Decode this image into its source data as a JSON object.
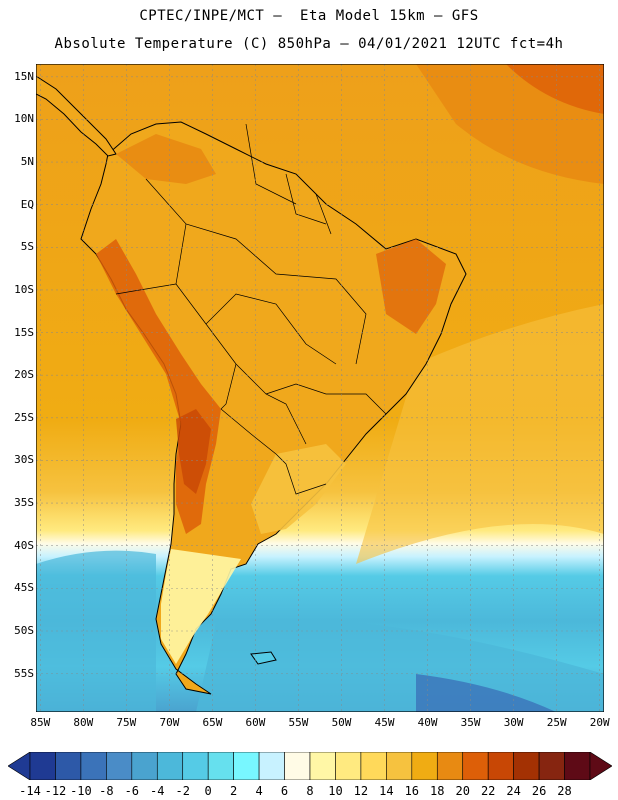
{
  "header": {
    "line1": "CPTEC/INPE/MCT –  Eta Model 15km – GFS",
    "line2": "Absolute Temperature (C) 850hPa – 04/01/2021 12UTC fct=4h"
  },
  "map": {
    "lat_ticks": [
      "15N",
      "10N",
      "5N",
      "EQ",
      "5S",
      "10S",
      "15S",
      "20S",
      "25S",
      "30S",
      "35S",
      "40S",
      "45S",
      "50S",
      "55S"
    ],
    "lon_ticks": [
      "85W",
      "80W",
      "75W",
      "70W",
      "65W",
      "60W",
      "55W",
      "50W",
      "45W",
      "40W",
      "35W",
      "30W",
      "25W",
      "20W"
    ],
    "lon_range": [
      -85.5,
      -19.5
    ],
    "lat_range": [
      16.5,
      -59.5
    ]
  },
  "colorbar": {
    "labels": [
      "-14",
      "-12",
      "-10",
      "-8",
      "-6",
      "-4",
      "-2",
      "0",
      "2",
      "4",
      "6",
      "8",
      "10",
      "12",
      "14",
      "16",
      "18",
      "20",
      "22",
      "24",
      "26",
      "28"
    ],
    "colors": [
      "#1f3a93",
      "#2d59a8",
      "#3b73b9",
      "#4a8cc7",
      "#4aa3cf",
      "#4cb8da",
      "#55cbe6",
      "#66e0ee",
      "#78f7ff",
      "#c8f2ff",
      "#fffbe6",
      "#fff7a6",
      "#ffea80",
      "#ffd95a",
      "#f6c23f",
      "#f0ac13",
      "#e88a12",
      "#dd5f08",
      "#c84705",
      "#a33103",
      "#862510",
      "#5e0a16"
    ]
  }
}
